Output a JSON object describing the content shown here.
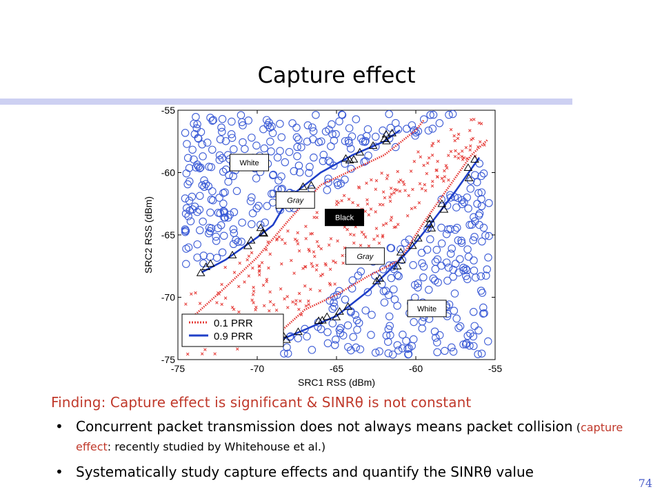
{
  "slide": {
    "title": "Capture effect",
    "finding": "Finding: Capture effect is significant & SINRθ is not constant",
    "bullet1_main": "Concurrent packet transmission does not always means packet collision",
    "bullet1_paren_open": " (",
    "bullet1_paren_red": "capture effect",
    "bullet1_paren_rest": ": recently studied by Whitehouse et al.)",
    "bullet2": "Systematically study capture effects and quantify the SINRθ value",
    "page_number": "74"
  },
  "colors": {
    "title_bar": "#cdd0f2",
    "finding_text": "#c0392b",
    "prr_0_1": "#e53935",
    "prr_0_9": "#1f3fc8",
    "circle_points": "#3b5bd6",
    "cross_points": "#e53935",
    "triangle_points": "#000000"
  },
  "chart_data": {
    "type": "scatter",
    "xlabel": "SRC1 RSS (dBm)",
    "ylabel": "SRC2 RSS (dBm)",
    "xlim": [
      -75,
      -55
    ],
    "ylim": [
      -75,
      -55
    ],
    "xticks": [
      "-75",
      "-70",
      "-65",
      "-60",
      "-55"
    ],
    "yticks": [
      "-55",
      "-60",
      "-65",
      "-70",
      "-75"
    ],
    "grid": false,
    "legend": {
      "placement": "bottom-left",
      "entries": [
        "0.1 PRR",
        "0.9 PRR"
      ]
    },
    "region_labels": [
      {
        "text": "White",
        "x": -70.5,
        "y": -59.2,
        "style": "white"
      },
      {
        "text": "Gray",
        "x": -67.6,
        "y": -62.2,
        "style": "gray"
      },
      {
        "text": "Black",
        "x": -64.5,
        "y": -63.6,
        "style": "black"
      },
      {
        "text": "Gray",
        "x": -63.2,
        "y": -66.7,
        "style": "gray"
      },
      {
        "text": "White",
        "x": -59.3,
        "y": -70.9,
        "style": "white"
      }
    ],
    "series": [
      {
        "name": "0.1 PRR",
        "style": "dotted",
        "color": "#e53935",
        "x": [
          -74.0,
          -72.0,
          -70.0,
          -68.0,
          -66.0,
          -64.0,
          -62.0,
          -60.0,
          -59.5
        ],
        "y": [
          -71.5,
          -69.2,
          -66.8,
          -63.8,
          -61.0,
          -59.8,
          -58.6,
          -56.6,
          -55.8
        ]
      },
      {
        "name": "0.1 PRR",
        "style": "dotted",
        "color": "#e53935",
        "x": [
          -69.0,
          -67.0,
          -65.0,
          -63.0,
          -61.0,
          -59.5,
          -58.0,
          -56.5,
          -55.5
        ],
        "y": [
          -73.3,
          -71.0,
          -69.8,
          -68.3,
          -67.0,
          -64.0,
          -61.3,
          -58.6,
          -57.4
        ]
      },
      {
        "name": "0.9 PRR",
        "style": "solid",
        "color": "#1f3fc8",
        "x": [
          -73.5,
          -72.0,
          -70.0,
          -69.0,
          -68.0,
          -66.0,
          -64.0,
          -62.0,
          -61.0
        ],
        "y": [
          -68.0,
          -67.0,
          -65.2,
          -64.2,
          -62.0,
          -60.0,
          -58.6,
          -57.5,
          -56.6
        ]
      },
      {
        "name": "0.9 PRR",
        "style": "solid",
        "color": "#1f3fc8",
        "x": [
          -68.5,
          -67.0,
          -65.0,
          -63.0,
          -61.0,
          -60.0,
          -59.0,
          -57.5,
          -56.0
        ],
        "y": [
          -73.4,
          -72.6,
          -71.5,
          -69.5,
          -67.0,
          -65.6,
          -64.0,
          -61.5,
          -58.8
        ]
      }
    ]
  }
}
